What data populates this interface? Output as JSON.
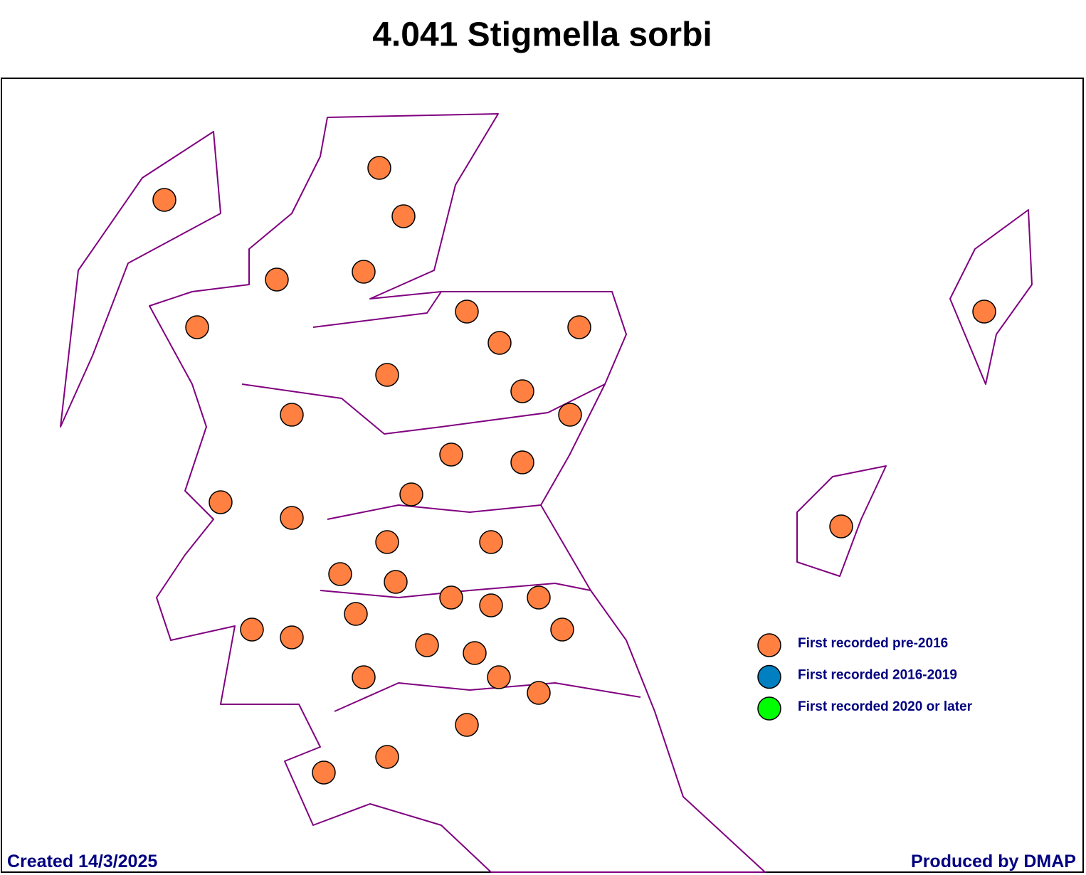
{
  "title": "4.041 Stigmella sorbi",
  "legend": [
    {
      "label": "First recorded pre-2016",
      "color": "#ff8040"
    },
    {
      "label": "First recorded 2016-2019",
      "color": "#0080c0"
    },
    {
      "label": "First recorded 2020 or later",
      "color": "#00ff00"
    }
  ],
  "footer": {
    "left": "Created 14/3/2025",
    "right": "Produced by DMAP"
  }
}
